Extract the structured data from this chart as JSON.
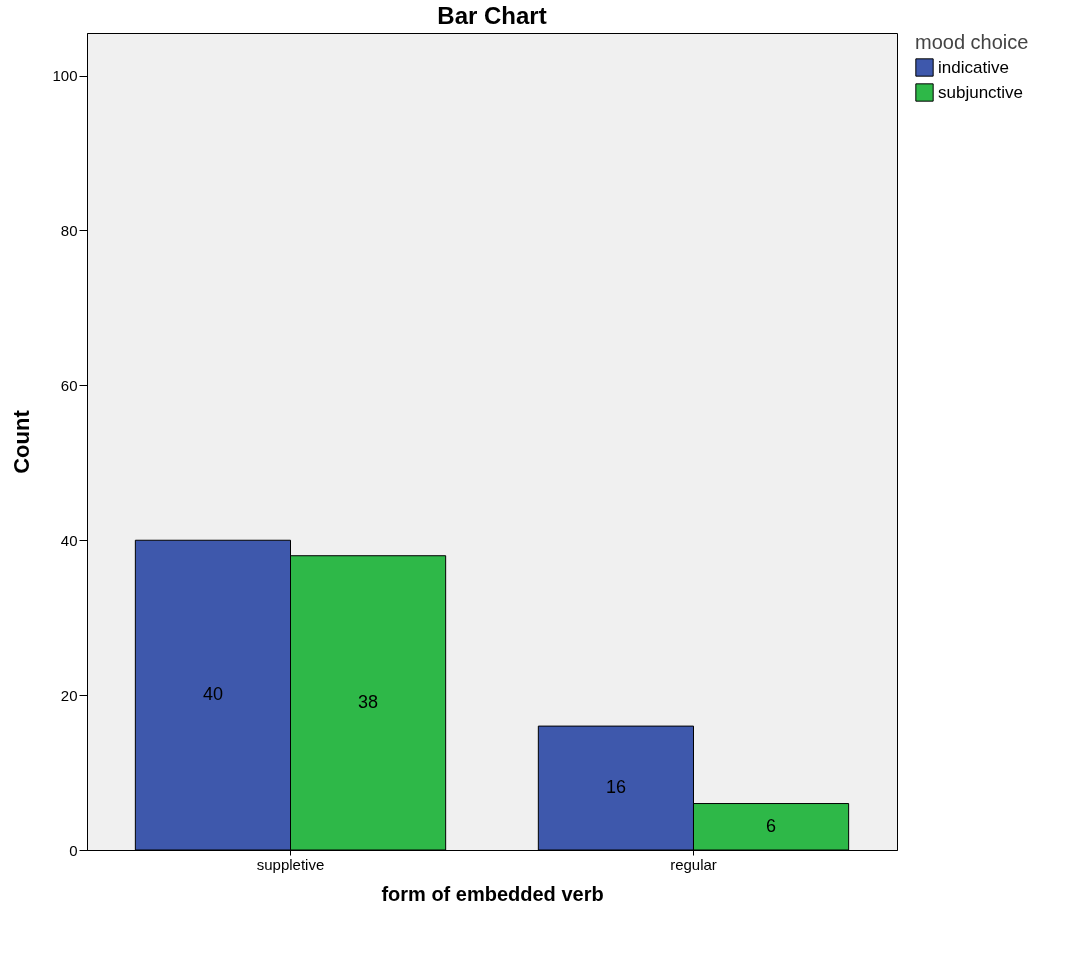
{
  "chart_data": {
    "type": "bar",
    "title": "Bar Chart",
    "xlabel": "form of embedded verb",
    "ylabel": "Count",
    "legend_title": "mood choice",
    "categories": [
      "suppletive",
      "regular"
    ],
    "series": [
      {
        "name": "indicative",
        "color": "#3e58ac",
        "values": [
          40,
          16
        ]
      },
      {
        "name": "subjunctive",
        "color": "#2eb848",
        "values": [
          38,
          6
        ]
      }
    ],
    "ylim": [
      0,
      105.5
    ],
    "yticks": [
      0,
      20,
      40,
      60,
      80,
      100
    ],
    "grid": false,
    "legend": "top right",
    "data_labels": true
  }
}
